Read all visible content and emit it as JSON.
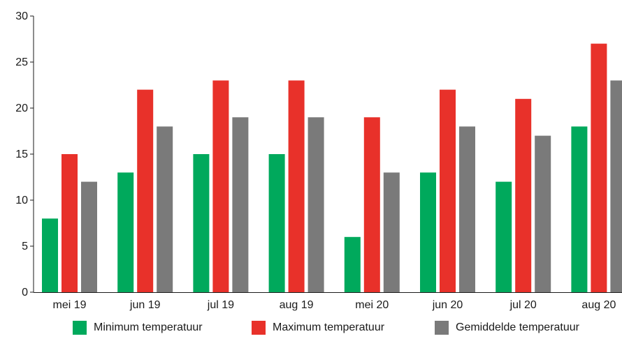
{
  "chart_data": {
    "type": "bar",
    "categories": [
      "mei 19",
      "jun 19",
      "jul 19",
      "aug 19",
      "mei 20",
      "jun 20",
      "jul 20",
      "aug 20"
    ],
    "series": [
      {
        "name": "Minimum temperatuur",
        "color": "#00a95c",
        "values": [
          8,
          13,
          15,
          15,
          6,
          13,
          12,
          18
        ]
      },
      {
        "name": "Maximum temperatuur",
        "color": "#e8312a",
        "values": [
          15,
          22,
          23,
          23,
          19,
          22,
          21,
          27
        ]
      },
      {
        "name": "Gemiddelde temperatuur",
        "color": "#7a7a7a",
        "values": [
          12,
          18,
          19,
          19,
          13,
          18,
          17,
          23
        ]
      }
    ],
    "ylim": [
      0,
      30
    ],
    "yticks": [
      0,
      5,
      10,
      15,
      20,
      25,
      30
    ],
    "xlabel": "",
    "ylabel": "",
    "title": "",
    "grid": false,
    "legend_position": "bottom"
  }
}
